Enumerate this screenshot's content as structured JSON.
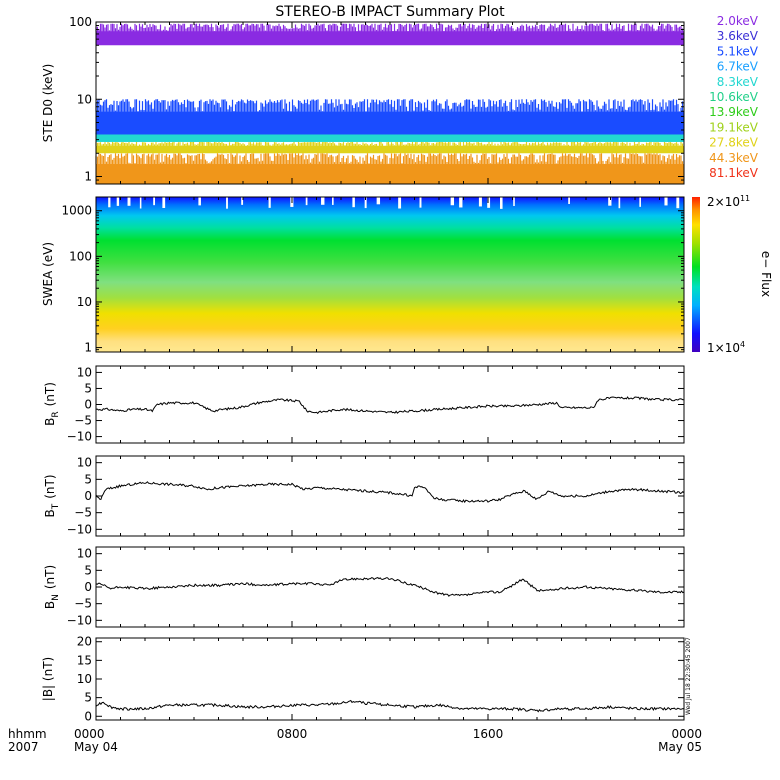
{
  "title": "STEREO-B IMPACT Summary Plot",
  "time_axis": {
    "row1_label": "hhmm",
    "row2_label": "2007",
    "range_hours": [
      0,
      24
    ],
    "ticks": [
      {
        "hour": 0,
        "label": "0000",
        "sub": "May 04"
      },
      {
        "hour": 8,
        "label": "0800",
        "sub": ""
      },
      {
        "hour": 16,
        "label": "1600",
        "sub": ""
      },
      {
        "hour": 24,
        "label": "0000",
        "sub": "May 05"
      }
    ]
  },
  "ste_legend": [
    {
      "label": "2.0keV",
      "color": "#8a2be2"
    },
    {
      "label": "3.6keV",
      "color": "#3b2fd6"
    },
    {
      "label": "5.1keV",
      "color": "#1a4cff"
    },
    {
      "label": "6.7keV",
      "color": "#1aa0ff"
    },
    {
      "label": "8.3keV",
      "color": "#22d7d0"
    },
    {
      "label": "10.6keV",
      "color": "#22d08a"
    },
    {
      "label": "13.9keV",
      "color": "#2ecc1a"
    },
    {
      "label": "19.1keV",
      "color": "#9fd11a"
    },
    {
      "label": "27.8keV",
      "color": "#e0d21a"
    },
    {
      "label": "44.3keV",
      "color": "#f0961a"
    },
    {
      "label": "81.1keV",
      "color": "#f0321a"
    }
  ],
  "colorbar": {
    "label": "e− Flux",
    "max_label": "2×10",
    "max_exp": "11",
    "min_label": "1×10",
    "min_exp": "4"
  },
  "timestamp_note": "Wed Jul 18 22:30:45 2007",
  "chart_data": [
    {
      "type": "line",
      "name": "ste",
      "ylabel": "STE D0 (keV)",
      "yscale": "log",
      "ylim": [
        0.8,
        100
      ],
      "ticks": [
        {
          "v": 1,
          "label": "1"
        },
        {
          "v": 10,
          "label": "10"
        },
        {
          "v": 100,
          "label": "100"
        }
      ],
      "bands": [
        {
          "channel": "2.0keV",
          "low": 50,
          "high": 95
        },
        {
          "channel": "5.1keV",
          "low": 3.5,
          "high": 10
        },
        {
          "channel": "8.3keV",
          "low": 2.8,
          "high": 4
        },
        {
          "channel": "27.8keV",
          "low": 2.0,
          "high": 2.8
        },
        {
          "channel": "44.3keV",
          "low": 0.8,
          "high": 2.0
        }
      ]
    },
    {
      "type": "heatmap",
      "name": "swea",
      "ylabel": "SWEA (eV)",
      "yscale": "log",
      "ylim": [
        0.8,
        2000
      ],
      "ticks": [
        {
          "v": 1,
          "label": "1"
        },
        {
          "v": 10,
          "label": "10"
        },
        {
          "v": 100,
          "label": "100"
        },
        {
          "v": 1000,
          "label": "1000"
        }
      ],
      "flux_range": [
        10000,
        200000000000
      ]
    },
    {
      "type": "line",
      "name": "br",
      "ylabel": "B",
      "ysub": "R",
      "yunit": "(nT)",
      "ylim": [
        -12,
        12
      ],
      "ticks": [
        {
          "v": -10,
          "label": "−10"
        },
        {
          "v": -5,
          "label": "−5"
        },
        {
          "v": 0,
          "label": "0"
        },
        {
          "v": 5,
          "label": "5"
        },
        {
          "v": 10,
          "label": "10"
        }
      ],
      "x": [
        0,
        0.5,
        1,
        1.5,
        2,
        2.3,
        2.5,
        3,
        4,
        4.6,
        4.8,
        5.2,
        5.8,
        6.6,
        7,
        7.5,
        8.3,
        8.6,
        9,
        10,
        11,
        12,
        13,
        14,
        15,
        16,
        17,
        18,
        18.8,
        19,
        19.6,
        20.3,
        20.5,
        21,
        22,
        23,
        24
      ],
      "y": [
        -1.5,
        -1.5,
        -2,
        -1.5,
        -1.5,
        -2,
        0,
        0.5,
        0.5,
        -1.5,
        -2,
        -1.5,
        -1,
        0.5,
        1,
        1.5,
        1,
        -2,
        -2.5,
        -1.5,
        -2,
        -2.5,
        -2,
        -1.5,
        -1,
        -0.5,
        -0.5,
        0,
        0.5,
        -1,
        -1,
        -1,
        1.5,
        2,
        2,
        1.5,
        1.5
      ]
    },
    {
      "type": "line",
      "name": "bt",
      "ylabel": "B",
      "ysub": "T",
      "yunit": "(nT)",
      "ylim": [
        -12,
        12
      ],
      "ticks": [
        {
          "v": -10,
          "label": "−10"
        },
        {
          "v": -5,
          "label": "−5"
        },
        {
          "v": 0,
          "label": "0"
        },
        {
          "v": 5,
          "label": "5"
        },
        {
          "v": 10,
          "label": "10"
        }
      ],
      "x": [
        0,
        0.2,
        0.4,
        1,
        2,
        3,
        4,
        4.6,
        5,
        6,
        7,
        8,
        8.5,
        9,
        10,
        11,
        12,
        12.5,
        12.9,
        13,
        13.3,
        13.6,
        13.8,
        14,
        15,
        16,
        16.5,
        17,
        17.5,
        18,
        18.5,
        19,
        20,
        21,
        22,
        23,
        24
      ],
      "y": [
        0,
        -1,
        2,
        3,
        4,
        3.5,
        3,
        2,
        2.5,
        3,
        3.5,
        3.5,
        2,
        2.5,
        2,
        1.5,
        1,
        0.5,
        0,
        2.5,
        3,
        1,
        -0.5,
        -1,
        -1.5,
        -1.5,
        -1,
        0.5,
        1.5,
        -1,
        1.5,
        0,
        0,
        1.5,
        2,
        1.5,
        1
      ]
    },
    {
      "type": "line",
      "name": "bn",
      "ylabel": "B",
      "ysub": "N",
      "yunit": "(nT)",
      "ylim": [
        -12,
        12
      ],
      "ticks": [
        {
          "v": -10,
          "label": "−10"
        },
        {
          "v": -5,
          "label": "−5"
        },
        {
          "v": 0,
          "label": "0"
        },
        {
          "v": 5,
          "label": "5"
        },
        {
          "v": 10,
          "label": "10"
        }
      ],
      "x": [
        0,
        0.3,
        0.6,
        1,
        2,
        3,
        4,
        5,
        6,
        7,
        8,
        9,
        9.5,
        10,
        10.5,
        11,
        12,
        13,
        14,
        14.5,
        15,
        15.5,
        16,
        16.5,
        17,
        17.3,
        17.5,
        18,
        18.5,
        19,
        20,
        21,
        22,
        23,
        24
      ],
      "y": [
        1,
        0.5,
        -0.5,
        0,
        -0.5,
        0,
        0.5,
        0.5,
        1,
        0.5,
        1,
        1,
        0.5,
        2,
        2.5,
        2.5,
        2.5,
        0.5,
        -2,
        -2.5,
        -2.5,
        -2,
        -1.5,
        -1.5,
        0.5,
        2,
        2,
        -1,
        -1,
        -0.5,
        0,
        -0.5,
        -1,
        -1.5,
        -1.5
      ]
    },
    {
      "type": "line",
      "name": "bmag",
      "ylabel": "|B| (nT)",
      "ylim": [
        -1,
        21
      ],
      "ticks": [
        {
          "v": 0,
          "label": "0"
        },
        {
          "v": 5,
          "label": "5"
        },
        {
          "v": 10,
          "label": "10"
        },
        {
          "v": 15,
          "label": "15"
        },
        {
          "v": 20,
          "label": "20"
        }
      ],
      "x": [
        0,
        0.3,
        0.6,
        1,
        2,
        3,
        4,
        5,
        6,
        7,
        8,
        9,
        10,
        10.5,
        11,
        12,
        13,
        14,
        15,
        16,
        17,
        18,
        19,
        20,
        21,
        22,
        23,
        24
      ],
      "y": [
        3,
        3.8,
        2.5,
        2,
        2,
        3,
        3,
        3,
        2.5,
        2.5,
        3,
        3,
        3.5,
        4,
        3.5,
        3,
        2.5,
        3,
        2,
        2,
        2,
        1.5,
        2,
        2,
        2.5,
        2,
        2,
        2
      ]
    }
  ]
}
